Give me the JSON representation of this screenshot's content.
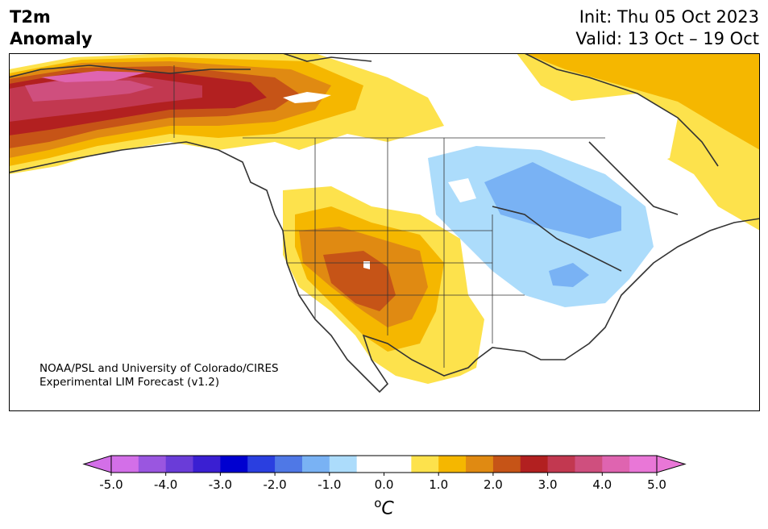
{
  "title": {
    "line1": "T2m",
    "line2": "Anomaly"
  },
  "dates": {
    "init": "Init: Thu 05 Oct 2023",
    "valid": "Valid: 13 Oct – 19 Oct"
  },
  "credit": {
    "line1": "NOAA/PSL and University of Colorado/CIRES",
    "line2": "Experimental LIM Forecast (v1.2)"
  },
  "colorbar": {
    "unit_prefix": "o",
    "unit_main": "C",
    "colors": [
      "#d36fe8",
      "#9a56e0",
      "#6a3cd8",
      "#3a1fd2",
      "#0000d0",
      "#2a3fe0",
      "#4f78e6",
      "#79b2f4",
      "#acdcfb",
      "#ffffff",
      "#ffffff",
      "#fde24c",
      "#f5b700",
      "#e08a12",
      "#c65417",
      "#b22020",
      "#c23850",
      "#cf4f7e",
      "#df64b0",
      "#e977d7"
    ],
    "ticks": [
      {
        "value": -5.0,
        "label": "-5.0"
      },
      {
        "value": -4.0,
        "label": "-4.0"
      },
      {
        "value": -3.0,
        "label": "-3.0"
      },
      {
        "value": -2.0,
        "label": "-2.0"
      },
      {
        "value": -1.0,
        "label": "-1.0"
      },
      {
        "value": 0.0,
        "label": "0.0"
      },
      {
        "value": 1.0,
        "label": "1.0"
      },
      {
        "value": 2.0,
        "label": "2.0"
      },
      {
        "value": 3.0,
        "label": "3.0"
      },
      {
        "value": 4.0,
        "label": "4.0"
      },
      {
        "value": 5.0,
        "label": "5.0"
      }
    ],
    "min": -5.0,
    "max": 5.0
  }
}
